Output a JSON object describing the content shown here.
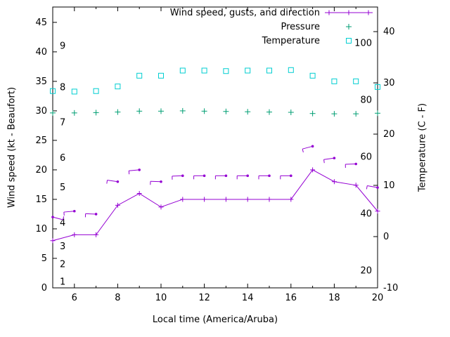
{
  "colors": {
    "wind": "#9400d3",
    "pressure": "#009e73",
    "temperature": "#00ced1",
    "axis": "#000000",
    "background": "#ffffff"
  },
  "chart_data": {
    "type": "line",
    "legend": [
      {
        "label": "Wind speed, gusts, and direction",
        "series": "wind"
      },
      {
        "label": "Pressure",
        "series": "pressure"
      },
      {
        "label": "Temperature",
        "series": "temperature"
      }
    ],
    "axes": {
      "x_label": "Local time (America/Aruba)",
      "y_left_label": "Wind speed (kt - Beaufort)",
      "y_right_label": "Temperature (C - F)",
      "x_range": [
        5,
        20
      ],
      "x_major_ticks": [
        6,
        8,
        10,
        12,
        14,
        16,
        18,
        20
      ],
      "x_minor_ticks": [
        7,
        9,
        11,
        13,
        15,
        17,
        19
      ],
      "y_left_range": [
        0,
        47.6
      ],
      "y_left_ticks": [
        0,
        5,
        10,
        15,
        20,
        25,
        30,
        35,
        40,
        45
      ],
      "y_right_range": [
        -10,
        44.8
      ],
      "y_right_ticks": [
        -10,
        0,
        10,
        20,
        30,
        40
      ],
      "beaufort_labels": [
        {
          "text": "1",
          "kt": 1
        },
        {
          "text": "2",
          "kt": 4
        },
        {
          "text": "3",
          "kt": 7
        },
        {
          "text": "4",
          "kt": 11
        },
        {
          "text": "5",
          "kt": 17
        },
        {
          "text": "6",
          "kt": 22
        },
        {
          "text": "7",
          "kt": 28
        },
        {
          "text": "8",
          "kt": 34
        },
        {
          "text": "9",
          "kt": 41
        }
      ],
      "fahrenheit_labels": [
        {
          "text": "20",
          "f": 20
        },
        {
          "text": "40",
          "f": 40
        },
        {
          "text": "60",
          "f": 60
        },
        {
          "text": "80",
          "f": 80
        },
        {
          "text": "100",
          "f": 100
        }
      ]
    },
    "x": [
      5,
      6,
      7,
      8,
      9,
      10,
      11,
      12,
      13,
      14,
      15,
      16,
      17,
      18,
      19,
      20
    ],
    "series": [
      {
        "name": "wind_speed_kt",
        "values": [
          8,
          9,
          9,
          14,
          16,
          13.7,
          15,
          15,
          15,
          15,
          15,
          15,
          20,
          18,
          17.4,
          13
        ]
      },
      {
        "name": "wind_gusts_kt",
        "values": [
          12,
          13,
          12.5,
          18,
          20,
          18,
          19,
          19,
          19,
          19,
          19,
          19,
          24,
          22,
          21,
          17
        ],
        "barb_angles_deg": [
          345,
          185,
          178,
          172,
          185,
          178,
          182,
          180,
          180,
          180,
          180,
          180,
          195,
          188,
          182,
          170
        ]
      },
      {
        "name": "pressure",
        "values": [
          29.65,
          29.65,
          29.7,
          29.8,
          29.95,
          29.95,
          30,
          29.95,
          29.9,
          29.85,
          29.8,
          29.75,
          29.55,
          29.5,
          29.5,
          29.6
        ]
      },
      {
        "name": "temperature_C",
        "values": [
          28.4,
          28.3,
          28.4,
          29.3,
          31.4,
          31.4,
          32.4,
          32.4,
          32.3,
          32.4,
          32.4,
          32.5,
          31.4,
          30.3,
          30.3,
          29.2
        ]
      }
    ]
  }
}
